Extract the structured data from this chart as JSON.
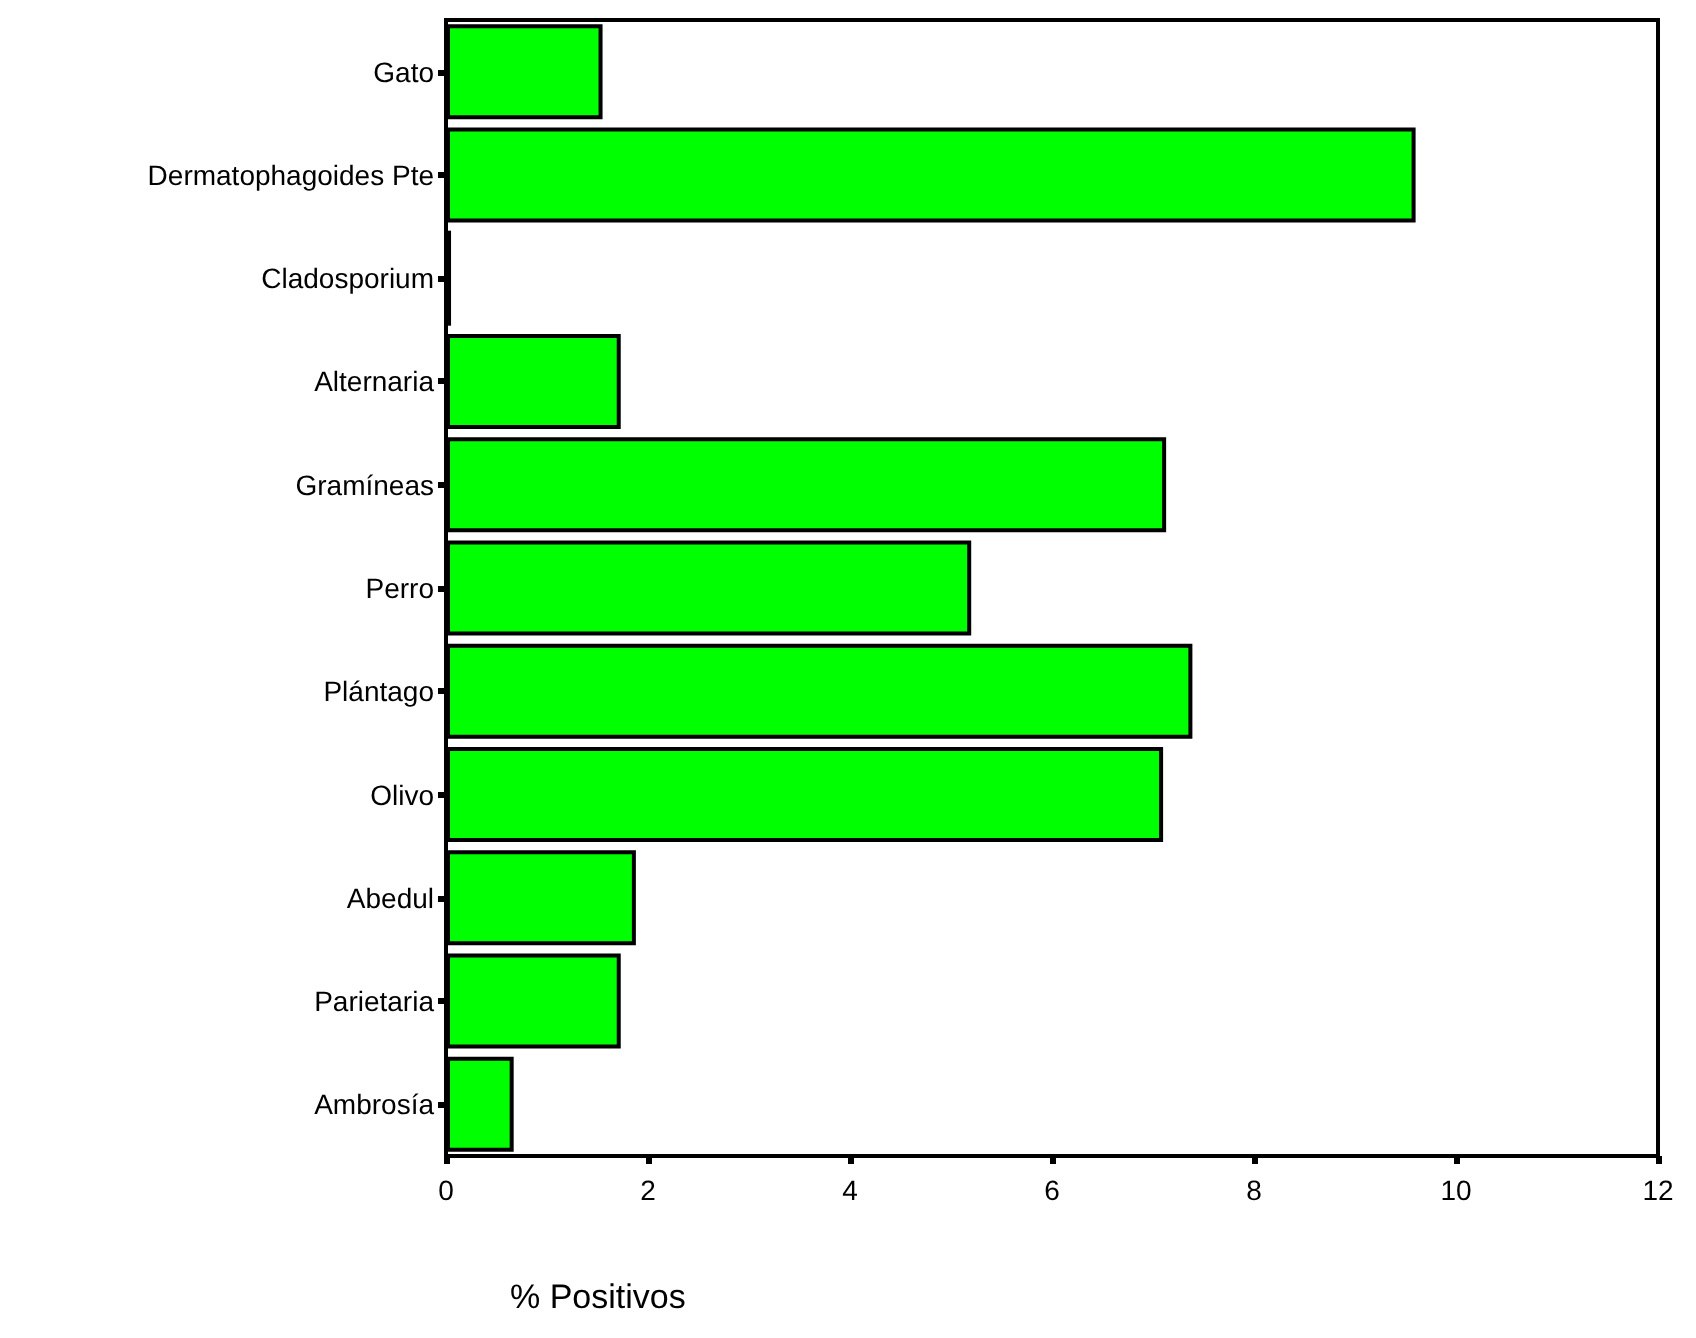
{
  "chart_data": {
    "type": "bar",
    "orientation": "horizontal",
    "xlabel": "% Positivos",
    "categories": [
      "Gato",
      "Dermatophagoides Pte",
      "Cladosporium",
      "Alternaria",
      "Gramíneas",
      "Perro",
      "Plántago",
      "Olivo",
      "Abedul",
      "Parietaria",
      "Ambrosía"
    ],
    "values": [
      1.55,
      9.6,
      0.05,
      1.73,
      7.13,
      5.2,
      7.39,
      7.1,
      1.88,
      1.73,
      0.67
    ],
    "color": "#00ff00",
    "xlim": [
      0,
      12
    ],
    "xticks": [
      0,
      2,
      4,
      6,
      8,
      10,
      12
    ],
    "grid": false
  }
}
